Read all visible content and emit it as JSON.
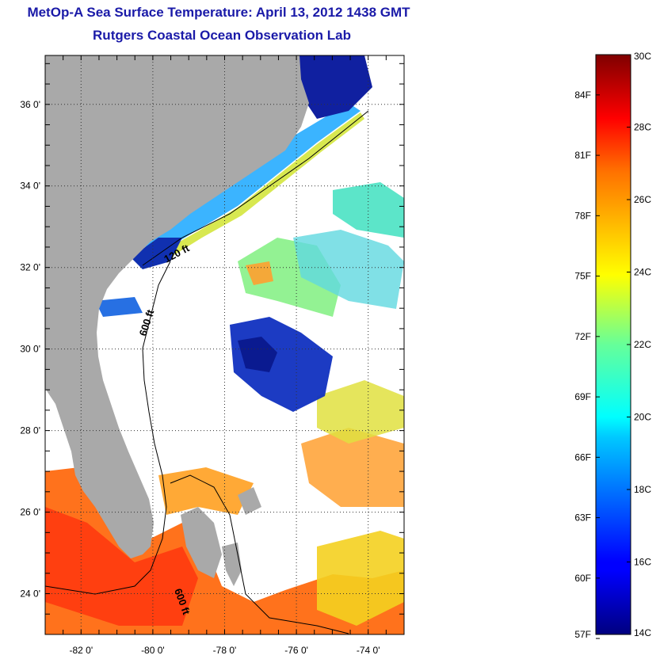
{
  "title": {
    "line1": "MetOp-A Sea Surface Temperature:  April 13, 2012 1438 GMT",
    "line2": "Rutgers Coastal Ocean Observation Lab"
  },
  "map": {
    "lat_range": [
      23.0,
      37.2
    ],
    "lon_range": [
      -83.0,
      -73.0
    ],
    "lat_ticks": [
      {
        "value": 36,
        "label": "36 0'"
      },
      {
        "value": 34,
        "label": "34 0'"
      },
      {
        "value": 32,
        "label": "32 0'"
      },
      {
        "value": 30,
        "label": "30 0'"
      },
      {
        "value": 28,
        "label": "28 0'"
      },
      {
        "value": 26,
        "label": "26 0'"
      },
      {
        "value": 24,
        "label": "24 0'"
      }
    ],
    "lon_ticks": [
      {
        "value": -82,
        "label": "-82 0'"
      },
      {
        "value": -80,
        "label": "-80 0'"
      },
      {
        "value": -78,
        "label": "-78 0'"
      },
      {
        "value": -76,
        "label": "-76 0'"
      },
      {
        "value": -74,
        "label": "-74 0'"
      }
    ],
    "contour_labels": [
      "120 ft",
      "600 ft",
      "600 ft"
    ],
    "colors": {
      "land": "#a9a9a9",
      "cloud": "#ffffff"
    }
  },
  "colorbar": {
    "range_c": [
      14,
      30
    ],
    "celsius_labels": [
      "30C",
      "28C",
      "26C",
      "24C",
      "22C",
      "20C",
      "18C",
      "16C",
      "14C"
    ],
    "celsius_values": [
      30,
      28,
      26,
      24,
      22,
      20,
      18,
      16,
      14
    ],
    "fahrenheit_labels": [
      "84F",
      "81F",
      "78F",
      "75F",
      "72F",
      "69F",
      "66F",
      "63F",
      "60F",
      "57F"
    ],
    "fahrenheit_values": [
      84,
      81,
      78,
      75,
      72,
      69,
      66,
      63,
      60,
      57
    ],
    "colormap": "jet"
  }
}
